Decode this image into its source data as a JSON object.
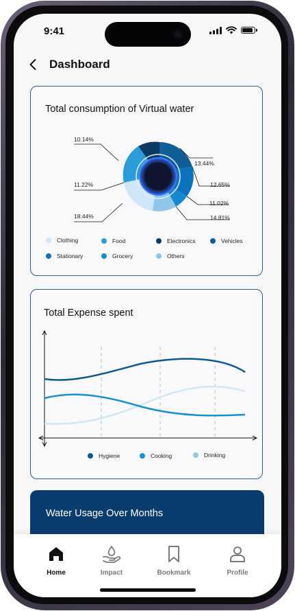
{
  "status_bar": {
    "time": "9:41"
  },
  "header": {
    "title": "Dashboard"
  },
  "virtual_water": {
    "title": "Total consumption of Virtual water",
    "percent_labels": [
      "10.14%",
      "11.22%",
      "18.44%",
      "13.44%",
      "12.65%",
      "11.02%",
      "14.81%"
    ],
    "legend": [
      {
        "label": "Clothing",
        "color": "#cfe6f6"
      },
      {
        "label": "Food",
        "color": "#2a9dd8"
      },
      {
        "label": "Electronics",
        "color": "#0b3a63"
      },
      {
        "label": "Vehicles",
        "color": "#0f5e96"
      },
      {
        "label": "Stationary",
        "color": "#0a72be"
      },
      {
        "label": "Grocery",
        "color": "#1689cf"
      },
      {
        "label": "Others",
        "color": "#8fc6e9"
      }
    ]
  },
  "expense": {
    "title": "Total Expense spent",
    "legend": [
      {
        "label": "Hygiene",
        "color": "#0b5a91"
      },
      {
        "label": "Cooking",
        "color": "#1690d0"
      },
      {
        "label": "Drinking",
        "color": "#8ec6ee"
      }
    ]
  },
  "water_usage": {
    "title": "Water Usage Over Months"
  },
  "tabbar": {
    "items": [
      {
        "label": "Home",
        "icon": "home-icon"
      },
      {
        "label": "Impact",
        "icon": "impact-icon"
      },
      {
        "label": "Bookmark",
        "icon": "bookmark-icon"
      },
      {
        "label": "Profile",
        "icon": "profile-icon"
      }
    ]
  }
}
